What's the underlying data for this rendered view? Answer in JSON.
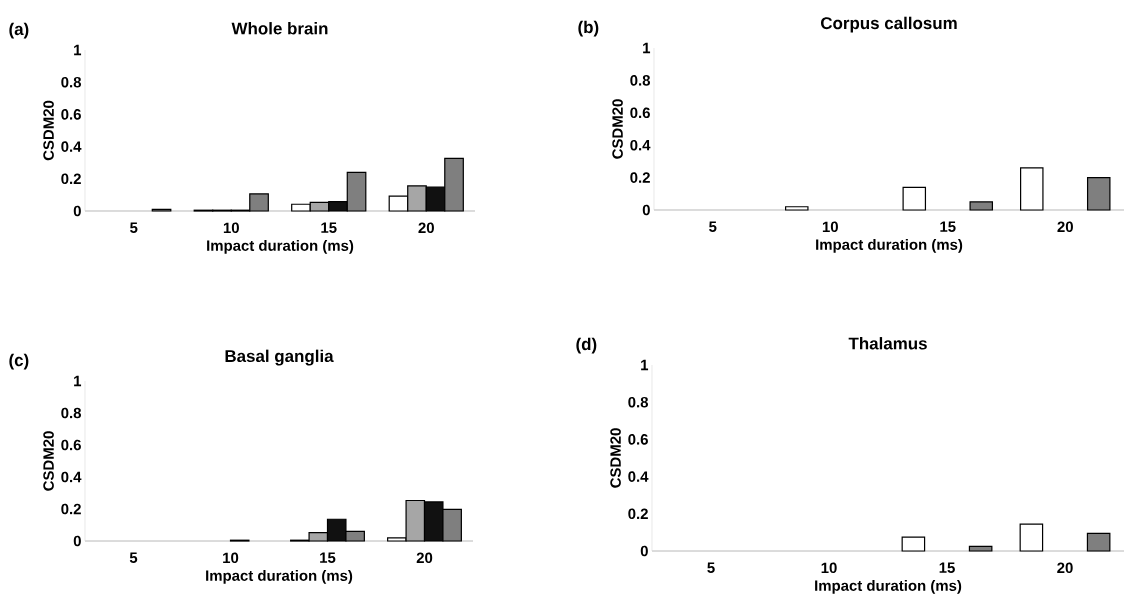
{
  "chart_data": [
    {
      "type": "bar",
      "title": "Whole brain",
      "xlabel": "Impact duration (ms)",
      "ylabel": "CSDM20",
      "annotations": [
        "(a)"
      ],
      "categories": [
        "5",
        "10",
        "15",
        "20"
      ],
      "ylim": [
        0,
        1
      ],
      "yticks": [
        0,
        0.2,
        0.4,
        0.6,
        0.8,
        1
      ],
      "series": [
        {
          "color": "#ffffff",
          "values": [
            null,
            0.005,
            0.042,
            0.092
          ]
        },
        {
          "color": "#a6a6a6",
          "values": [
            null,
            0.005,
            0.054,
            0.156
          ]
        },
        {
          "color": "#111111",
          "values": [
            null,
            0.005,
            0.058,
            0.148
          ]
        },
        {
          "color": "#7f7f7f",
          "values": [
            0.01,
            0.106,
            0.24,
            0.327
          ]
        }
      ]
    },
    {
      "type": "bar",
      "title": "Corpus callosum",
      "xlabel": "Impact duration (ms)",
      "ylabel": "CSDM20",
      "annotations": [
        "(b)"
      ],
      "categories": [
        "5",
        "10",
        "15",
        "20"
      ],
      "ylim": [
        0,
        1
      ],
      "yticks": [
        0,
        0.2,
        0.4,
        0.6,
        0.8,
        1
      ],
      "series": [
        {
          "color": "#ffffff",
          "values": [
            null,
            0.02,
            0.14,
            0.26
          ]
        },
        {
          "color": "#a6a6a6",
          "values": [
            null,
            null,
            null,
            null
          ]
        },
        {
          "color": "#111111",
          "values": [
            null,
            null,
            null,
            null
          ]
        },
        {
          "color": "#7f7f7f",
          "values": [
            null,
            null,
            0.05,
            0.2
          ]
        }
      ]
    },
    {
      "type": "bar",
      "title": "Basal ganglia",
      "xlabel": "Impact duration (ms)",
      "ylabel": "CSDM20",
      "annotations": [
        "(c)"
      ],
      "categories": [
        "5",
        "10",
        "15",
        "20"
      ],
      "ylim": [
        0,
        1
      ],
      "yticks": [
        0,
        0.2,
        0.4,
        0.6,
        0.8,
        1
      ],
      "series": [
        {
          "color": "#ffffff",
          "values": [
            null,
            null,
            0.005,
            0.02
          ]
        },
        {
          "color": "#a6a6a6",
          "values": [
            null,
            null,
            0.052,
            0.253
          ]
        },
        {
          "color": "#111111",
          "values": [
            null,
            0.005,
            0.136,
            0.244
          ]
        },
        {
          "color": "#7f7f7f",
          "values": [
            null,
            null,
            0.06,
            0.198
          ]
        }
      ]
    },
    {
      "type": "bar",
      "title": "Thalamus",
      "xlabel": "Impact duration (ms)",
      "ylabel": "CSDM20",
      "annotations": [
        "(d)"
      ],
      "categories": [
        "5",
        "10",
        "15",
        "20"
      ],
      "ylim": [
        0,
        1
      ],
      "yticks": [
        0,
        0.2,
        0.4,
        0.6,
        0.8,
        1
      ],
      "series": [
        {
          "color": "#ffffff",
          "values": [
            null,
            null,
            0.075,
            0.145
          ]
        },
        {
          "color": "#a6a6a6",
          "values": [
            null,
            null,
            null,
            null
          ]
        },
        {
          "color": "#111111",
          "values": [
            null,
            null,
            null,
            null
          ]
        },
        {
          "color": "#7f7f7f",
          "values": [
            null,
            null,
            0.025,
            0.095
          ]
        }
      ]
    }
  ]
}
